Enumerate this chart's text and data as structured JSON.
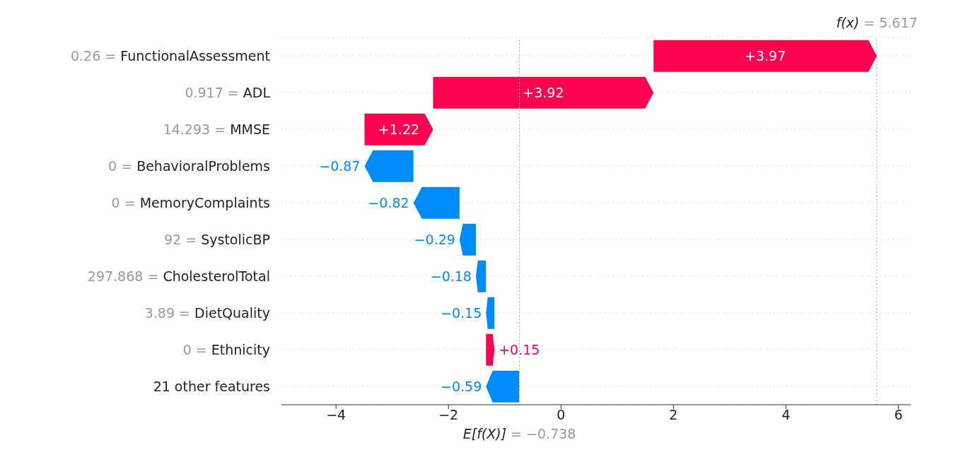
{
  "chart_data": {
    "type": "bar",
    "orientation": "horizontal",
    "categories": [
      "0.26 = FunctionalAssessment",
      "0.917 = ADL",
      "14.293 = MMSE",
      "0 = BehavioralProblems",
      "0 = MemoryComplaints",
      "92 = SystolicBP",
      "297.868 = CholesterolTotal",
      "3.89 = DietQuality",
      "0 = Ethnicity",
      "21 other features"
    ],
    "values": [
      3.97,
      3.92,
      1.22,
      -0.87,
      -0.82,
      -0.29,
      -0.18,
      -0.15,
      0.15,
      -0.59
    ],
    "base": [
      1.647,
      -2.273,
      -3.493,
      -2.623,
      -1.803,
      -1.513,
      -1.333,
      -1.183,
      -1.333,
      -0.743
    ],
    "colors": [
      "#ff0051",
      "#ff0051",
      "#ff0051",
      "#008bfb",
      "#008bfb",
      "#008bfb",
      "#008bfb",
      "#008bfb",
      "#ff0051",
      "#008bfb"
    ],
    "value_labels": [
      "+3.97",
      "+3.92",
      "+1.22",
      "−0.87",
      "−0.82",
      "−0.29",
      "−0.18",
      "−0.15",
      "+0.15",
      "−0.59"
    ],
    "xlim": [
      -4.97,
      6.22
    ],
    "xticks": [
      {
        "value": -4,
        "label": "−4"
      },
      {
        "value": -2,
        "label": "−2"
      },
      0,
      2,
      4,
      6
    ],
    "grid": "y",
    "legend": false,
    "ref_lines": [
      {
        "axis": "x",
        "value": 5.617,
        "label": "f(x) = 5.617",
        "color": "#aaaaaa",
        "line_style": "dotted"
      },
      {
        "axis": "x",
        "value": -0.738,
        "label": "E[f(X)] = −0.738",
        "color": "#aaaaaa",
        "line_style": "dotted"
      }
    ]
  }
}
